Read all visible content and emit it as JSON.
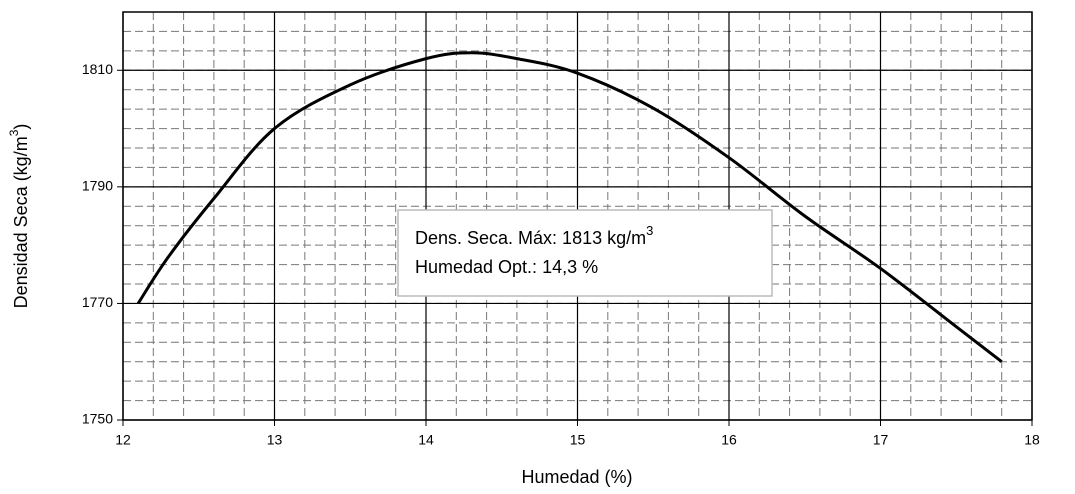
{
  "chart_data": {
    "type": "line",
    "xlabel": "Humedad (%)",
    "ylabel": [
      "Densidad Seca (kg/m",
      "3",
      ")"
    ],
    "annotation": {
      "line1": "Dens. Seca. Máx: 1813 kg/m",
      "line1_sup": "3",
      "line2": "Humedad Opt.: 14,3 %"
    },
    "x": [
      12.1,
      12.3,
      12.6,
      13.0,
      13.5,
      14.0,
      14.3,
      14.6,
      15.0,
      15.5,
      16.0,
      16.5,
      17.0,
      17.5,
      17.8
    ],
    "series": [
      {
        "color": "#000000",
        "values": [
          1770,
          1778,
          1788,
          1800,
          1807.5,
          1812,
          1813,
          1812,
          1809.5,
          1803.5,
          1795,
          1785,
          1776,
          1766,
          1760
        ]
      }
    ],
    "xlim": [
      12,
      18
    ],
    "xticks": [
      12,
      13,
      14,
      15,
      16,
      17,
      18
    ],
    "ylim": [
      1750,
      1820
    ],
    "yticks": [
      1750,
      1770,
      1790,
      1810
    ],
    "grid": true,
    "minor_grid": {
      "x_divisions": 5,
      "y_divisions": 6
    }
  }
}
